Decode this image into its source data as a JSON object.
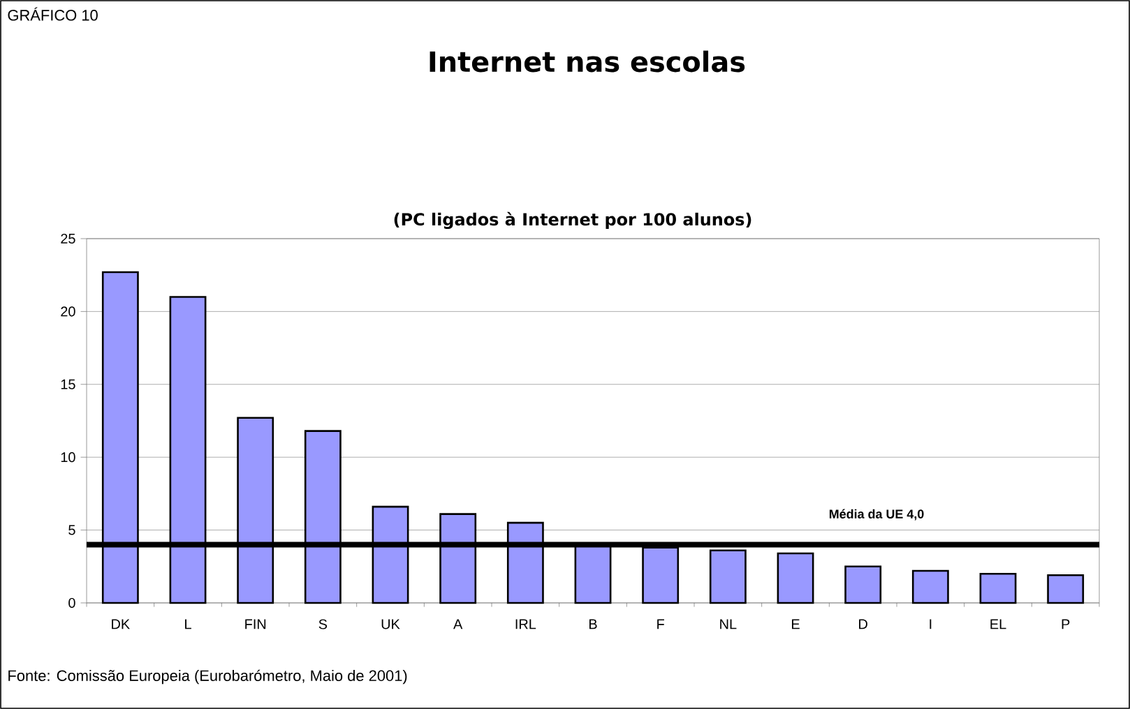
{
  "chart_data": {
    "type": "bar",
    "title": "Internet nas escolas",
    "subtitle": "(PC ligados à Internet por 100 alunos)",
    "categories": [
      "DK",
      "L",
      "FIN",
      "S",
      "UK",
      "A",
      "IRL",
      "B",
      "F",
      "NL",
      "E",
      "D",
      "I",
      "EL",
      "P"
    ],
    "values": [
      22.7,
      21.0,
      12.7,
      11.8,
      6.6,
      6.1,
      5.5,
      4.0,
      3.8,
      3.6,
      3.4,
      2.5,
      2.2,
      2.0,
      1.9
    ],
    "color": "#9999ff",
    "ylim": [
      0,
      25
    ],
    "yticks": [
      0,
      5,
      10,
      15,
      20,
      25
    ],
    "grid": "y",
    "ref_lines": [
      {
        "axis": "y",
        "value": 4.0,
        "label": "Média da UE 4,0",
        "color": "#000000"
      }
    ],
    "annotations": [
      "GRÁFICO 10",
      "Fonte: Comissão Europeia  (Eurobarómetro, Maio de 2001)"
    ]
  }
}
